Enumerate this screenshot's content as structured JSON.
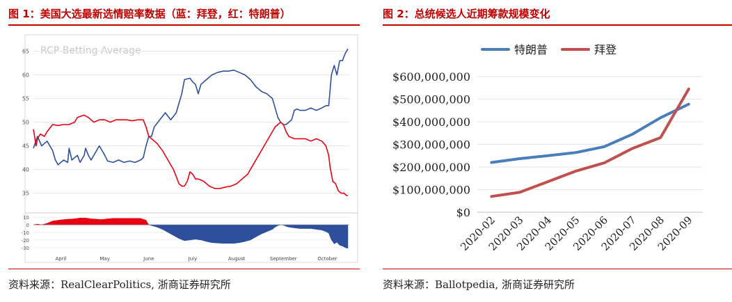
{
  "figures": [
    {
      "title": "图 1：美国大选最新选情赔率数据（蓝：拜登，红：特朗普）",
      "source": "资料来源：RealClearPolitics, 浙商证券研究所",
      "watermark": "RCP Betting Average"
    },
    {
      "title": "图 2：总统候选人近期筹款规模变化",
      "source": "资料来源：Ballotpedia, 浙商证券研究所"
    }
  ],
  "chart_data": [
    {
      "type": "line",
      "ylim": [
        32,
        67
      ],
      "yticks": [
        "35",
        "40",
        "45",
        "50",
        "55",
        "60",
        "65"
      ],
      "xlim": [
        0,
        230
      ],
      "x_tick_labels": [
        "April",
        "May",
        "June",
        "July",
        "August",
        "September",
        "October"
      ],
      "x_tick_positions": [
        20,
        52,
        84,
        116,
        148,
        182,
        214
      ],
      "series": [
        {
          "color": "#2e4f9c",
          "points": [
            [
              0,
              44.5
            ],
            [
              3,
              47
            ],
            [
              6,
              45
            ],
            [
              10,
              46
            ],
            [
              14,
              44
            ],
            [
              16,
              42
            ],
            [
              18,
              41
            ],
            [
              22,
              42
            ],
            [
              25,
              41.5
            ],
            [
              26,
              44.5
            ],
            [
              28,
              42
            ],
            [
              32,
              43
            ],
            [
              34,
              41.5
            ],
            [
              37,
              43
            ],
            [
              38,
              44.5
            ],
            [
              40,
              43
            ],
            [
              42,
              42
            ],
            [
              45,
              43.5
            ],
            [
              48,
              45
            ],
            [
              50,
              44
            ],
            [
              52,
              43
            ],
            [
              54,
              41.8
            ],
            [
              58,
              41.5
            ],
            [
              62,
              42
            ],
            [
              66,
              41.5
            ],
            [
              70,
              41.8
            ],
            [
              74,
              41.5
            ],
            [
              78,
              42
            ],
            [
              80,
              42.5
            ],
            [
              82,
              45
            ],
            [
              84,
              47
            ],
            [
              86,
              47
            ],
            [
              88,
              49
            ],
            [
              92,
              50.5
            ],
            [
              96,
              52
            ],
            [
              100,
              50.5
            ],
            [
              104,
              52
            ],
            [
              106,
              54
            ],
            [
              108,
              56
            ],
            [
              110,
              59
            ],
            [
              114,
              59.3
            ],
            [
              116,
              58.5
            ],
            [
              118,
              58
            ],
            [
              120,
              56
            ],
            [
              122,
              58
            ],
            [
              126,
              59
            ],
            [
              130,
              60
            ],
            [
              134,
              60.5
            ],
            [
              138,
              60.8
            ],
            [
              142,
              60.8
            ],
            [
              146,
              61
            ],
            [
              150,
              60.5
            ],
            [
              154,
              60
            ],
            [
              158,
              59
            ],
            [
              162,
              57.5
            ],
            [
              166,
              56.5
            ],
            [
              170,
              56
            ],
            [
              174,
              55
            ],
            [
              176,
              53
            ],
            [
              178,
              51
            ],
            [
              180,
              50
            ],
            [
              182,
              49.5
            ],
            [
              184,
              49.5
            ],
            [
              186,
              50
            ],
            [
              188,
              50.5
            ],
            [
              190,
              52.5
            ],
            [
              192,
              52.8
            ],
            [
              194,
              52.5
            ],
            [
              198,
              52.5
            ],
            [
              202,
              53
            ],
            [
              206,
              52.5
            ],
            [
              210,
              53
            ],
            [
              213,
              53.5
            ],
            [
              215,
              53.5
            ],
            [
              217,
              60
            ],
            [
              219,
              62
            ],
            [
              221,
              60
            ],
            [
              223,
              63
            ],
            [
              225,
              63
            ],
            [
              227,
              64.5
            ],
            [
              229,
              65.5
            ]
          ]
        },
        {
          "color": "#e60012",
          "points": [
            [
              0,
              48.5
            ],
            [
              2,
              45
            ],
            [
              3,
              46.5
            ],
            [
              5,
              47.5
            ],
            [
              8,
              47
            ],
            [
              10,
              48
            ],
            [
              14,
              49.5
            ],
            [
              18,
              49.3
            ],
            [
              22,
              49.5
            ],
            [
              26,
              49.5
            ],
            [
              30,
              50
            ],
            [
              32,
              51
            ],
            [
              34,
              51.2
            ],
            [
              37,
              51.5
            ],
            [
              40,
              51
            ],
            [
              44,
              50
            ],
            [
              48,
              50.5
            ],
            [
              52,
              50.5
            ],
            [
              56,
              50
            ],
            [
              60,
              50.5
            ],
            [
              64,
              50.5
            ],
            [
              68,
              50.5
            ],
            [
              72,
              50.3
            ],
            [
              76,
              50.5
            ],
            [
              80,
              50.5
            ],
            [
              82,
              49
            ],
            [
              84,
              47
            ],
            [
              86,
              46.5
            ],
            [
              90,
              45.5
            ],
            [
              94,
              44
            ],
            [
              98,
              42
            ],
            [
              102,
              40
            ],
            [
              104,
              38.5
            ],
            [
              106,
              37
            ],
            [
              108,
              36.5
            ],
            [
              110,
              36.5
            ],
            [
              112,
              37.5
            ],
            [
              114,
              39.5
            ],
            [
              116,
              39
            ],
            [
              118,
              38
            ],
            [
              120,
              38
            ],
            [
              124,
              37.5
            ],
            [
              128,
              36.5
            ],
            [
              132,
              36
            ],
            [
              136,
              36
            ],
            [
              140,
              36.3
            ],
            [
              144,
              36.5
            ],
            [
              148,
              37
            ],
            [
              152,
              38
            ],
            [
              156,
              39
            ],
            [
              160,
              41
            ],
            [
              164,
              43
            ],
            [
              168,
              45
            ],
            [
              172,
              47
            ],
            [
              176,
              49
            ],
            [
              178,
              49.5
            ],
            [
              180,
              50
            ],
            [
              182,
              49.5
            ],
            [
              184,
              48
            ],
            [
              186,
              47
            ],
            [
              190,
              46.5
            ],
            [
              194,
              46.5
            ],
            [
              198,
              46.5
            ],
            [
              202,
              46
            ],
            [
              206,
              46.5
            ],
            [
              210,
              46
            ],
            [
              213,
              45
            ],
            [
              215,
              43
            ],
            [
              216,
              40.5
            ],
            [
              218,
              37.5
            ],
            [
              220,
              37
            ],
            [
              222,
              35.5
            ],
            [
              224,
              35
            ],
            [
              226,
              35
            ],
            [
              228,
              34.5
            ],
            [
              229,
              34.5
            ]
          ]
        }
      ]
    },
    {
      "type": "line",
      "ylim": [
        -32,
        12
      ],
      "yticks": [
        "10",
        "0",
        "-10",
        "-20",
        "-30"
      ],
      "xlim": [
        0,
        230
      ],
      "x_tick_labels": [
        "April",
        "May",
        "June",
        "July",
        "August",
        "September",
        "October"
      ],
      "fill_positive_color": "#e60012",
      "fill_negative_color": "#2e4f9c",
      "series": [
        {
          "points": [
            [
              0,
              0
            ],
            [
              3,
              1
            ],
            [
              6,
              0
            ],
            [
              10,
              2
            ],
            [
              14,
              5
            ],
            [
              18,
              6
            ],
            [
              22,
              7
            ],
            [
              26,
              7.5
            ],
            [
              30,
              8
            ],
            [
              34,
              9
            ],
            [
              38,
              9
            ],
            [
              42,
              8
            ],
            [
              46,
              7.5
            ],
            [
              50,
              7
            ],
            [
              54,
              8
            ],
            [
              58,
              8.5
            ],
            [
              62,
              8.5
            ],
            [
              66,
              8.5
            ],
            [
              70,
              8.5
            ],
            [
              74,
              8.5
            ],
            [
              78,
              8.5
            ],
            [
              82,
              6
            ],
            [
              84,
              0
            ],
            [
              86,
              -1
            ],
            [
              90,
              -3
            ],
            [
              94,
              -6
            ],
            [
              98,
              -10
            ],
            [
              102,
              -14
            ],
            [
              106,
              -18
            ],
            [
              110,
              -21
            ],
            [
              114,
              -20
            ],
            [
              118,
              -19
            ],
            [
              122,
              -20
            ],
            [
              126,
              -22
            ],
            [
              130,
              -23.5
            ],
            [
              134,
              -24
            ],
            [
              138,
              -24.5
            ],
            [
              142,
              -24.5
            ],
            [
              146,
              -24.5
            ],
            [
              150,
              -23.5
            ],
            [
              154,
              -22
            ],
            [
              158,
              -20
            ],
            [
              162,
              -16
            ],
            [
              166,
              -12
            ],
            [
              170,
              -9
            ],
            [
              174,
              -6
            ],
            [
              176,
              -3
            ],
            [
              178,
              -1
            ],
            [
              180,
              0
            ],
            [
              182,
              -0.5
            ],
            [
              184,
              -2
            ],
            [
              186,
              -3
            ],
            [
              190,
              -4
            ],
            [
              194,
              -5
            ],
            [
              198,
              -5
            ],
            [
              202,
              -5
            ],
            [
              206,
              -6
            ],
            [
              210,
              -7
            ],
            [
              213,
              -9
            ],
            [
              215,
              -11
            ],
            [
              217,
              -20
            ],
            [
              219,
              -25
            ],
            [
              221,
              -23
            ],
            [
              223,
              -27
            ],
            [
              225,
              -28
            ],
            [
              227,
              -30
            ],
            [
              229,
              -31
            ]
          ]
        }
      ]
    },
    {
      "type": "line",
      "categories": [
        "2020-02",
        "2020-03",
        "2020-04",
        "2020-05",
        "2020-06",
        "2020-07",
        "2020-08",
        "2020-09"
      ],
      "ylim": [
        0,
        600000000
      ],
      "yticks": [
        "$0",
        "$100,000,000",
        "$200,000,000",
        "$300,000,000",
        "$400,000,000",
        "$500,000,000",
        "$600,000,000"
      ],
      "legend": "top",
      "series": [
        {
          "name": "特朗普",
          "color": "#4a7ebb",
          "values": [
            220000000,
            237000000,
            250000000,
            264000000,
            290000000,
            345000000,
            418000000,
            478000000
          ]
        },
        {
          "name": "拜登",
          "color": "#c0504d",
          "values": [
            70000000,
            88000000,
            135000000,
            182000000,
            218000000,
            282000000,
            330000000,
            545000000
          ]
        }
      ]
    }
  ]
}
